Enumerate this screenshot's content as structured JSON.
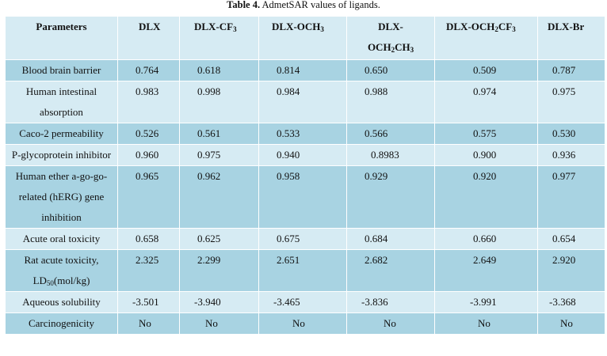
{
  "caption": {
    "label": "Table 4.",
    "text": "AdmetSAR values of ligands."
  },
  "table": {
    "header": {
      "parameters": "Parameters",
      "columns": [
        {
          "base": "DLX"
        },
        {
          "base": "DLX-CF",
          "sub": "3"
        },
        {
          "base": "DLX-OCH",
          "sub": "3"
        },
        {
          "line1": "DLX-",
          "base": "OCH",
          "sub": "2",
          "base2": "CH",
          "sub2": "3"
        },
        {
          "base": "DLX-OCH",
          "sub": "2",
          "base2": "CF",
          "sub2": "3"
        },
        {
          "base": "DLX-Br"
        }
      ]
    },
    "rows": [
      {
        "parameter": "Blood brain barrier",
        "values": [
          "0.764",
          "0.618",
          "0.814",
          "0.650",
          "0.509",
          "0.787"
        ]
      },
      {
        "parameter": "Human intestinal absorption",
        "values": [
          "0.983",
          "0.998",
          "0.984",
          "0.988",
          "0.974",
          "0.975"
        ]
      },
      {
        "parameter": "Caco-2 permeability",
        "values": [
          "0.526",
          "0.561",
          "0.533",
          "0.566",
          "0.575",
          "0.530"
        ]
      },
      {
        "parameter": "P-glycoprotein inhibitor",
        "values": [
          "0.960",
          "0.975",
          "0.940",
          "0.8983",
          "0.900",
          "0.936"
        ]
      },
      {
        "parameter": "Human ether a-go-go-related (hERG) gene inhibition",
        "values": [
          "0.965",
          "0.962",
          "0.958",
          "0.929",
          "0.920",
          "0.977"
        ]
      },
      {
        "parameter": "Acute oral toxicity",
        "values": [
          "0.658",
          "0.625",
          "0.675",
          "0.684",
          "0.660",
          "0.654"
        ]
      },
      {
        "parameter_pre": "Rat acute toxicity, LD",
        "parameter_sub": "50",
        "parameter_post": "(mol/kg)",
        "values": [
          "2.325",
          "2.299",
          "2.651",
          "2.682",
          "2.649",
          "2.920"
        ]
      },
      {
        "parameter": "Aqueous solubility",
        "values": [
          "-3.501",
          "-3.940",
          "-3.465",
          "-3.836",
          "-3.991",
          "-3.368"
        ]
      },
      {
        "parameter": "Carcinogenicity",
        "values": [
          "No",
          "No",
          "No",
          "No",
          "No",
          "No"
        ]
      }
    ]
  },
  "colors": {
    "light_row": "#d6ebf3",
    "dark_row": "#a8d3e2"
  }
}
